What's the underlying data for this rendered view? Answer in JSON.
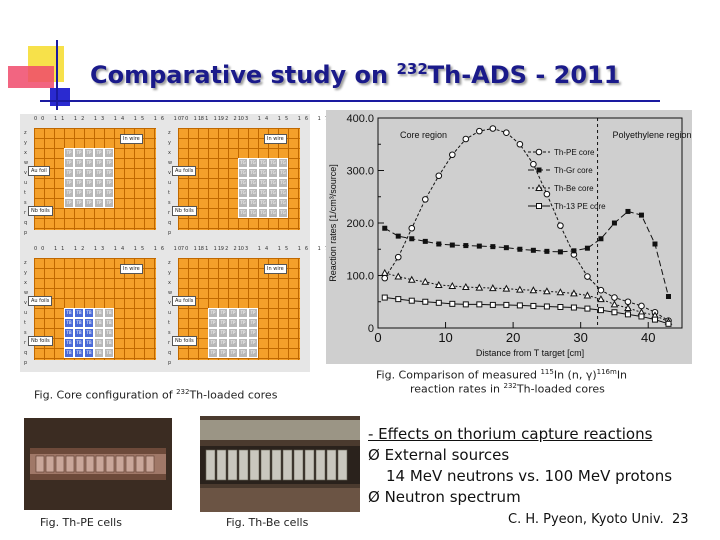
{
  "title": {
    "main": "Comparative study on ",
    "sup": "232",
    "rest": "Th-ADS - 2011"
  },
  "core_panel": {
    "col_numbers": "00 11 12 13 14 15 16 17 18 19 20",
    "row_numbers": [
      "z",
      "y",
      "x",
      "w",
      "v",
      "u",
      "t",
      "s",
      "r",
      "q",
      "p"
    ],
    "quadrants": [
      {
        "fuel_label": "TP",
        "in_wire": "In wire",
        "au_foil": "Au foil",
        "nb_foil": "Nb foils"
      },
      {
        "fuel_label": "TG",
        "in_wire": "In wire",
        "au_foil": "Au foils",
        "nb_foil": "Nb foils"
      },
      {
        "fuel_label": "TB",
        "in_wire": "In wire",
        "au_foil": "Au foils",
        "nb_foil": "Nb foils"
      },
      {
        "fuel_label": "TP",
        "in_wire": "In wire",
        "au_foil": "Au foils",
        "nb_foil": "Nb foils"
      }
    ]
  },
  "captions": {
    "core": {
      "pre": "Fig. Core configuration of ",
      "sup": "232",
      "post": "Th-loaded cores"
    },
    "comparison_line1": {
      "pre": "Fig. Comparison of measured ",
      "sup1": "115",
      "mid": "In (n, ",
      "gamma": "γ",
      "mid2": ")",
      "sup2": "116m",
      "post": "In"
    },
    "comparison_line2": {
      "pre": "reaction rates in ",
      "sup": "232",
      "post": "Th-loaded cores"
    },
    "th_pe": "Fig. Th-PE cells",
    "th_be": "Fig. Th-Be cells"
  },
  "chart_data": {
    "type": "line",
    "xlabel": "Distance from T target [cm]",
    "ylabel": "Reaction rates [1/cm³/source]",
    "xlim": [
      0,
      45
    ],
    "ylim": [
      0,
      400
    ],
    "x_ticks": [
      0,
      10,
      20,
      30,
      40
    ],
    "y_ticks": [
      "0",
      "100.0",
      "200.0",
      "300.0",
      "400.0"
    ],
    "annotations": [
      "Core region",
      "Polyethylene region"
    ],
    "series": [
      {
        "name": "Th-PE core",
        "marker": "open-circle",
        "x": [
          1,
          3,
          5,
          7,
          9,
          11,
          13,
          15,
          17,
          19,
          21,
          23,
          25,
          27,
          29,
          31,
          33,
          35,
          37,
          39,
          41,
          43
        ],
        "y": [
          95,
          135,
          190,
          245,
          290,
          330,
          360,
          375,
          380,
          372,
          350,
          312,
          255,
          195,
          140,
          98,
          72,
          58,
          50,
          42,
          30,
          14
        ]
      },
      {
        "name": "Th-Gr core",
        "marker": "filled-square",
        "x": [
          1,
          3,
          5,
          7,
          9,
          11,
          13,
          15,
          17,
          19,
          21,
          23,
          25,
          27,
          29,
          31,
          33,
          35,
          37,
          39,
          41,
          43
        ],
        "y": [
          190,
          175,
          170,
          165,
          160,
          158,
          157,
          156,
          155,
          153,
          150,
          148,
          146,
          145,
          147,
          152,
          170,
          200,
          222,
          215,
          160,
          60
        ]
      },
      {
        "name": "Th-Be core",
        "marker": "open-triangle",
        "x": [
          1,
          3,
          5,
          7,
          9,
          11,
          13,
          15,
          17,
          19,
          21,
          23,
          25,
          27,
          29,
          31,
          33,
          35,
          37,
          39,
          41,
          43
        ],
        "y": [
          105,
          98,
          92,
          88,
          82,
          80,
          78,
          77,
          76,
          75,
          73,
          72,
          70,
          68,
          66,
          62,
          55,
          45,
          38,
          30,
          24,
          12
        ]
      },
      {
        "name": "Th-13 PE core",
        "marker": "open-square",
        "x": [
          1,
          3,
          5,
          7,
          9,
          11,
          13,
          15,
          17,
          19,
          21,
          23,
          25,
          27,
          29,
          31,
          33,
          35,
          37,
          39,
          41,
          43
        ],
        "y": [
          58,
          55,
          52,
          50,
          48,
          46,
          45,
          45,
          44,
          44,
          43,
          42,
          41,
          40,
          39,
          37,
          34,
          30,
          26,
          22,
          16,
          8
        ]
      }
    ]
  },
  "bullets": [
    "- Effects on thorium capture reactions",
    "Ø External sources",
    "14 MeV neutrons vs. 100 MeV protons",
    "Ø Neutron spectrum"
  ],
  "footer": {
    "author": "C. H. Pyeon, Kyoto Univ.",
    "page": "23"
  },
  "colors": {
    "title": "#1a1a8a",
    "grid_orange": "#f4a02a",
    "be_blue": "#4a6ad8"
  }
}
